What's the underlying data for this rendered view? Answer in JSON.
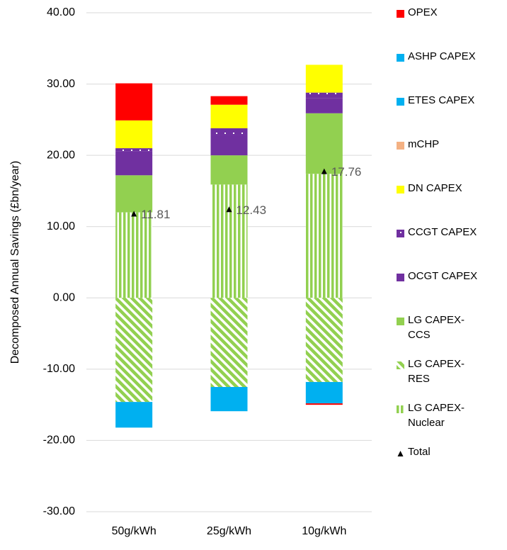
{
  "chart_data": {
    "type": "stacked_bar",
    "y_label": "Decomposed Annual Savings (£bn/year)",
    "categories": [
      "50g/kWh",
      "25g/kWh",
      "10g/kWh"
    ],
    "series": [
      {
        "name": "LG CAPEX-Nuclear",
        "color": "#92d050",
        "pattern": "vertical",
        "values": [
          12.0,
          15.9,
          17.4
        ]
      },
      {
        "name": "LG CAPEX-RES",
        "color": "#92d050",
        "pattern": "diagonal",
        "values": [
          -14.6,
          -12.5,
          -11.8
        ]
      },
      {
        "name": "LG CAPEX-CCS",
        "color": "#92d050",
        "values": [
          5.2,
          4.1,
          8.5
        ]
      },
      {
        "name": "OCGT CAPEX",
        "color": "#7030a0",
        "values": [
          3.4,
          2.8,
          2.1
        ]
      },
      {
        "name": "CCGT CAPEX",
        "color": "#7030a0",
        "pattern": "dots",
        "values": [
          0.4,
          1.0,
          0.8
        ]
      },
      {
        "name": "DN CAPEX",
        "color": "#ffff00",
        "values": [
          3.9,
          3.3,
          3.9
        ]
      },
      {
        "name": "mCHP",
        "color": "#f4b183",
        "values": [
          0,
          0,
          0
        ]
      },
      {
        "name": "ETES CAPEX",
        "color": "#00b0f0",
        "values": [
          -3.6,
          -3.4,
          -3.0
        ]
      },
      {
        "name": "ASHP CAPEX",
        "color": "#00b0f0",
        "values": [
          0,
          0,
          0
        ]
      },
      {
        "name": "OPEX",
        "color": "#ff0000",
        "values": [
          5.2,
          1.2,
          -0.2
        ]
      }
    ],
    "totals": {
      "name": "Total",
      "color": "#000000",
      "values": [
        11.81,
        12.43,
        17.76
      ]
    },
    "ylim": [
      -30,
      40
    ],
    "yticks": [
      {
        "value": -30,
        "label": "-30.00"
      },
      {
        "value": -20,
        "label": "-20.00"
      },
      {
        "value": -10,
        "label": "-10.00"
      },
      {
        "value": 0,
        "label": "0.00"
      },
      {
        "value": 10,
        "label": "10.00"
      },
      {
        "value": 20,
        "label": "20.00"
      },
      {
        "value": 30,
        "label": "30.00"
      },
      {
        "value": 40,
        "label": "40.00"
      }
    ],
    "grid": true,
    "legend": "right"
  }
}
